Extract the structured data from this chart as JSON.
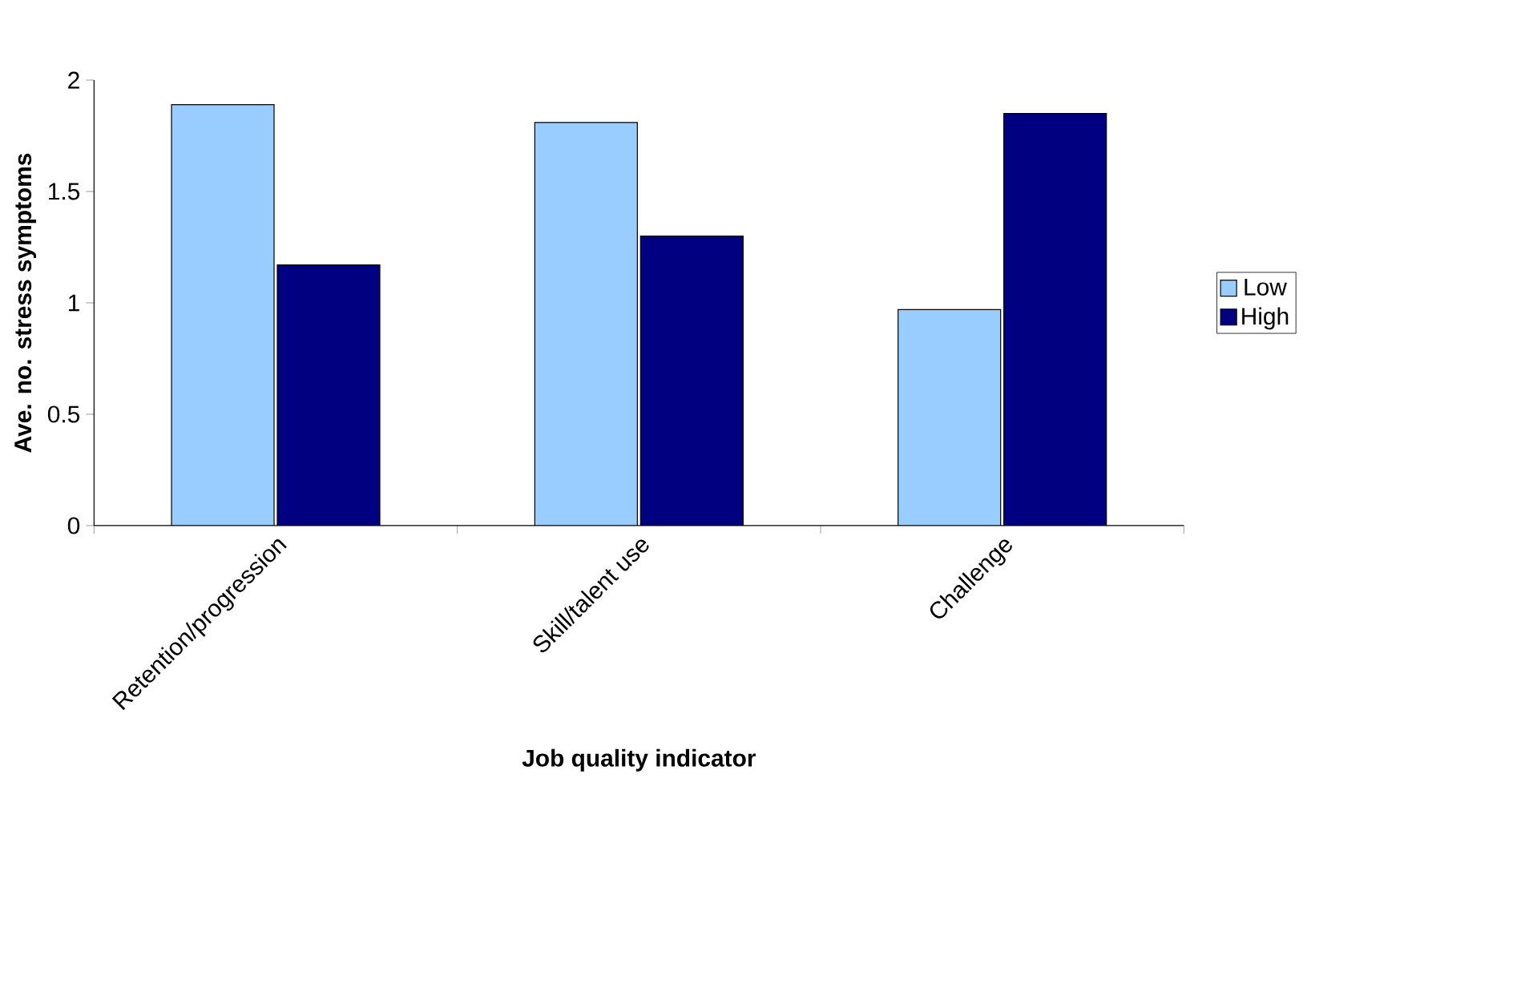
{
  "chart_data": {
    "type": "bar",
    "xlabel": "Job quality indicator",
    "ylabel": "Ave. no. stress symptoms",
    "categories": [
      "Retention/progression",
      "Skill/talent use",
      "Challenge"
    ],
    "series": [
      {
        "name": "Low",
        "color": "#99ccff",
        "values": [
          1.89,
          1.81,
          0.97
        ]
      },
      {
        "name": "High",
        "color": "#000080",
        "values": [
          1.17,
          1.3,
          1.85
        ]
      }
    ],
    "ylim": [
      0,
      2
    ],
    "yticks": [
      0,
      0.5,
      1,
      1.5,
      2
    ],
    "grid": false,
    "legend": "right"
  }
}
